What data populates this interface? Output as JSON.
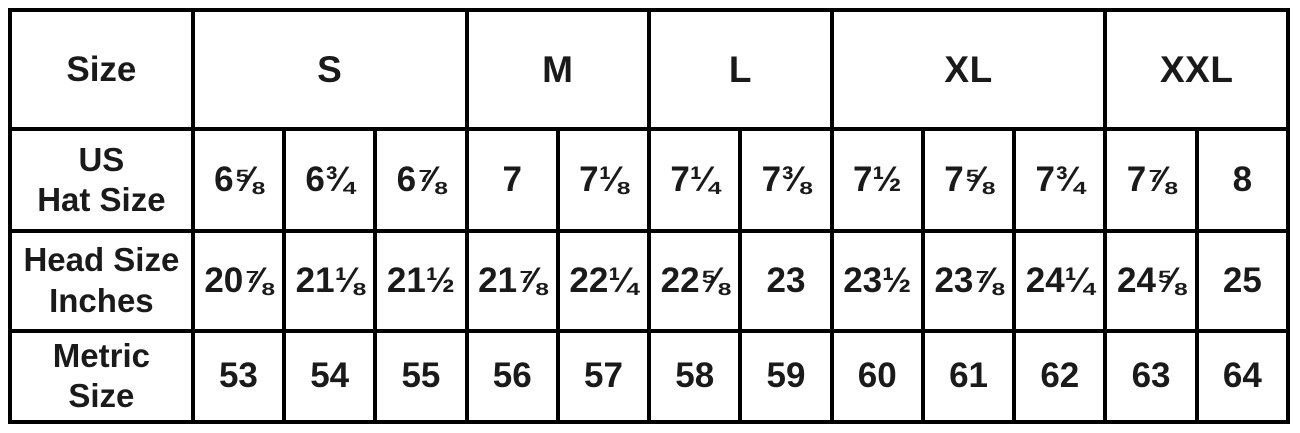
{
  "colors": {
    "border": "#000000",
    "background": "#ffffff",
    "text": "#1a1a1a"
  },
  "table": {
    "corner_label": "Size",
    "groups": [
      {
        "label": "S",
        "span": 3
      },
      {
        "label": "M",
        "span": 2
      },
      {
        "label": "L",
        "span": 2
      },
      {
        "label": "XL",
        "span": 3
      },
      {
        "label": "XXL",
        "span": 2
      }
    ],
    "rows": [
      {
        "label": "US\nHat Size",
        "values": [
          "6⅝",
          "6¾",
          "6⅞",
          "7",
          "7⅛",
          "7¼",
          "7⅜",
          "7½",
          "7⅝",
          "7¾",
          "7⅞",
          "8"
        ]
      },
      {
        "label": "Head Size\nInches",
        "values": [
          "20⅞",
          "21⅛",
          "21½",
          "21⅞",
          "22¼",
          "22⅝",
          "23",
          "23½",
          "23⅞",
          "24¼",
          "24⅝",
          "25"
        ]
      },
      {
        "label": "Metric\nSize",
        "values": [
          "53",
          "54",
          "55",
          "56",
          "57",
          "58",
          "59",
          "60",
          "61",
          "62",
          "63",
          "64"
        ]
      }
    ]
  },
  "chart_data": {
    "type": "table",
    "column_group_header": [
      "Size",
      "S",
      "M",
      "L",
      "XL",
      "XXL"
    ],
    "column_group_spans": [
      1,
      3,
      2,
      2,
      3,
      2
    ],
    "row_headers": [
      "US Hat Size",
      "Head Size Inches",
      "Metric Size"
    ],
    "cells": [
      [
        "6⅝",
        "6¾",
        "6⅞",
        "7",
        "7⅛",
        "7¼",
        "7⅜",
        "7½",
        "7⅝",
        "7¾",
        "7⅞",
        "8"
      ],
      [
        "20⅞",
        "21⅛",
        "21½",
        "21⅞",
        "22¼",
        "22⅝",
        "23",
        "23½",
        "23⅞",
        "24¼",
        "24⅝",
        "25"
      ],
      [
        "53",
        "54",
        "55",
        "56",
        "57",
        "58",
        "59",
        "60",
        "61",
        "62",
        "63",
        "64"
      ]
    ],
    "layout_hints": {
      "grid": "on",
      "border_color": "#000000",
      "header_row_position": "top",
      "label_column_position": "left"
    }
  }
}
